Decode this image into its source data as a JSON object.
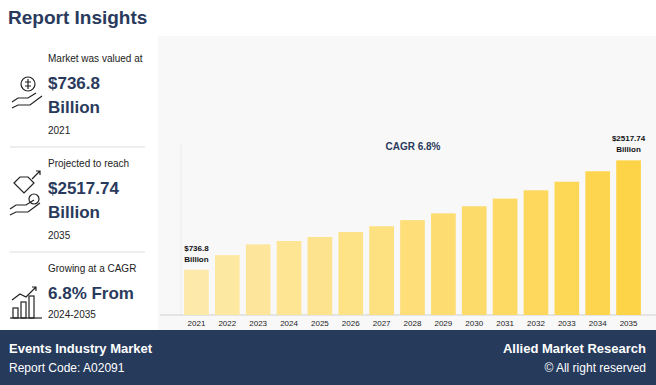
{
  "page": {
    "title": "Report Insights",
    "insights": [
      {
        "label": "Market was valued at",
        "value": "$736.8",
        "unit": "Billion",
        "year": "2021"
      },
      {
        "label": "Projected to reach",
        "value": "$2517.74",
        "unit": "Billion",
        "year": "2035"
      },
      {
        "label": "Growing at a CAGR",
        "value": "6.8% From",
        "year": "2024-2035"
      }
    ],
    "footer": {
      "title": "Events Industry Market",
      "code": "Report Code: A02091",
      "brand": "Allied Market Research",
      "rights": "© All right reserved"
    }
  },
  "chart_data": {
    "type": "bar",
    "annotations": [
      "CAGR 6.8%"
    ],
    "categories": [
      "2021",
      "2022",
      "2023",
      "2024",
      "2025",
      "2026",
      "2027",
      "2028",
      "2029",
      "2030",
      "2031",
      "2032",
      "2033",
      "2034",
      "2035"
    ],
    "values": [
      736.8,
      975,
      1150,
      1205,
      1270,
      1350,
      1445,
      1545,
      1655,
      1770,
      1895,
      2030,
      2170,
      2340,
      2517.74
    ],
    "colors": [
      "#fde9a9",
      "#fde8a2",
      "#fde69b",
      "#fde594",
      "#fde38d",
      "#fde286",
      "#fde07f",
      "#fdde79",
      "#fddd72",
      "#fddb6b",
      "#fdda64",
      "#fdd85d",
      "#fdd756",
      "#fdd54f",
      "#fdd448"
    ],
    "ylim": [
      0,
      2800
    ],
    "data_labels": true,
    "value_labels": [
      "$736.8 Billion",
      null,
      null,
      null,
      null,
      null,
      null,
      null,
      null,
      null,
      null,
      null,
      null,
      null,
      "$2517.74 Billion"
    ],
    "tick_labels": "x",
    "grid": false
  }
}
